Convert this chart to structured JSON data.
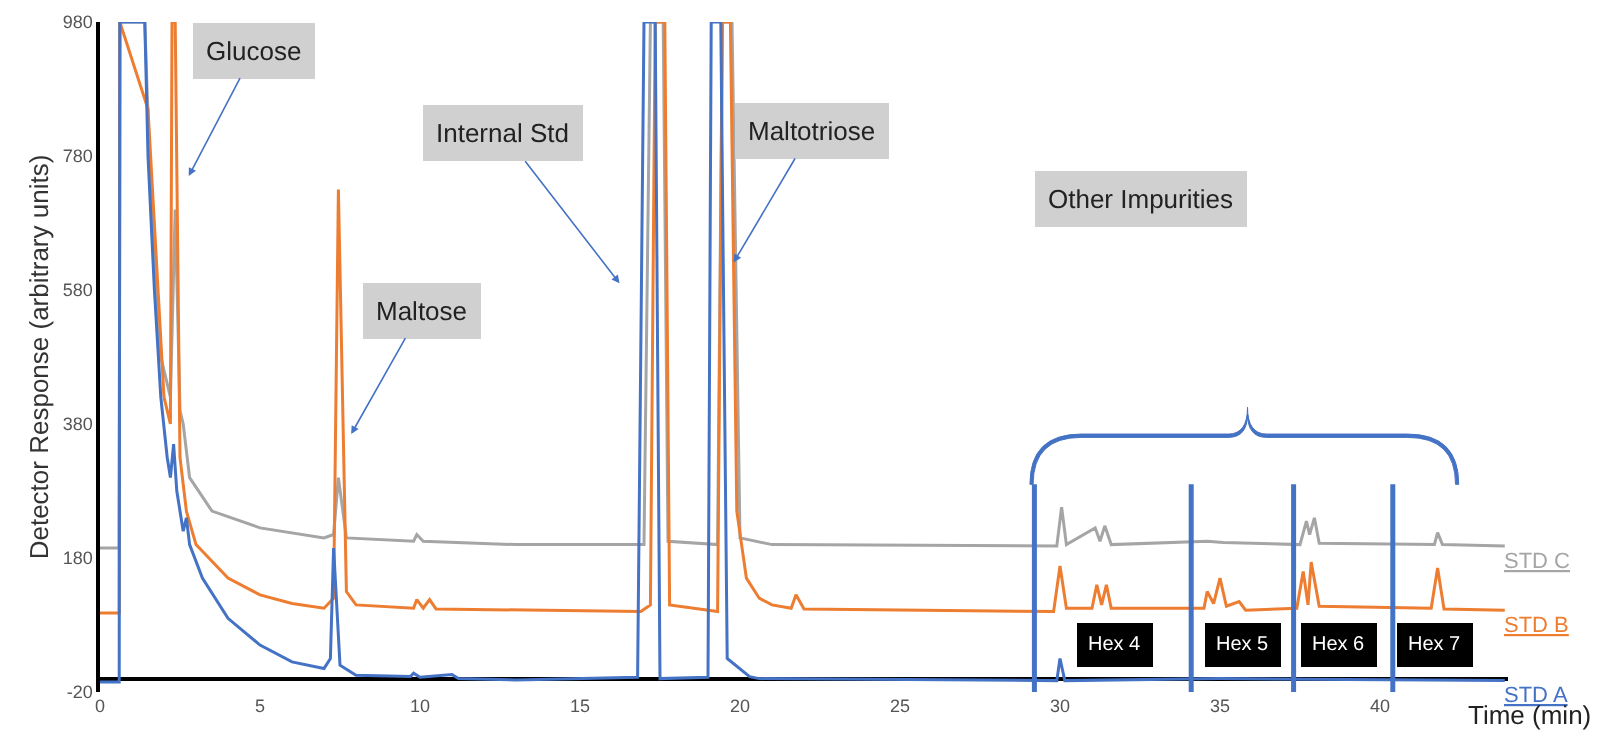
{
  "chart_data": {
    "type": "line",
    "xlabel": "Time (min)",
    "ylabel": "Detector Response (arbitrary units)",
    "xlim": [
      0,
      44
    ],
    "xticks": [
      0,
      5,
      10,
      15,
      20,
      25,
      30,
      35,
      40
    ],
    "ylim": [
      -20,
      980
    ],
    "yticks": [
      -20,
      180,
      380,
      580,
      780,
      980
    ],
    "grid": false,
    "legend": false,
    "marker": "none",
    "line_style": "solid",
    "series": [
      {
        "name": "STD C",
        "color": "#a5a5a5",
        "x": [
          0,
          0.55,
          0.6,
          0.62,
          1.4,
          1.6,
          1.9,
          2.2,
          2.35,
          2.5,
          2.6,
          2.8,
          3.5,
          5,
          7,
          7.3,
          7.45,
          7.7,
          9.8,
          9.9,
          10.1,
          13,
          17.0,
          17.2,
          17.6,
          17.75,
          19.3,
          19.45,
          19.75,
          20,
          21,
          29.9,
          30.05,
          30.2,
          31.1,
          31.25,
          31.4,
          31.6,
          34.6,
          35.1,
          37.5,
          37.7,
          37.8,
          37.95,
          38.1,
          41.7,
          41.8,
          41.95,
          43.9
        ],
        "values": [
          195,
          195,
          195,
          980,
          980,
          700,
          480,
          420,
          700,
          400,
          380,
          300,
          250,
          225,
          210,
          215,
          300,
          210,
          205,
          215,
          205,
          200,
          200,
          980,
          980,
          205,
          200,
          980,
          980,
          210,
          200,
          198,
          256,
          200,
          225,
          205,
          228,
          200,
          205,
          203,
          200,
          235,
          215,
          240,
          202,
          200,
          218,
          200,
          198
        ]
      },
      {
        "name": "STD B",
        "color": "#ed7d31",
        "x": [
          0,
          0.55,
          0.6,
          0.62,
          1.5,
          2.0,
          2.2,
          2.25,
          2.35,
          2.5,
          2.7,
          3,
          4,
          5,
          6,
          7,
          7.3,
          7.45,
          7.7,
          8,
          9.8,
          9.9,
          10.1,
          10.3,
          10.5,
          16.9,
          17.2,
          17.35,
          17.65,
          17.8,
          19.3,
          19.45,
          19.7,
          19.9,
          20.2,
          20.6,
          21,
          21.6,
          21.75,
          22,
          29.8,
          30.0,
          30.2,
          31,
          31.15,
          31.3,
          31.45,
          31.6,
          34.5,
          34.6,
          34.8,
          35.0,
          35.2,
          35.6,
          35.8,
          37.4,
          37.6,
          37.75,
          37.85,
          38.1,
          41.6,
          41.8,
          42.0,
          43.9
        ],
        "values": [
          98,
          98,
          98,
          980,
          850,
          420,
          380,
          980,
          980,
          330,
          250,
          200,
          150,
          125,
          112,
          105,
          120,
          730,
          130,
          110,
          105,
          118,
          105,
          118,
          104,
          100,
          110,
          980,
          980,
          110,
          100,
          980,
          980,
          250,
          150,
          120,
          110,
          105,
          125,
          104,
          100,
          168,
          105,
          105,
          140,
          110,
          140,
          105,
          105,
          130,
          112,
          150,
          108,
          115,
          102,
          105,
          160,
          110,
          174,
          108,
          105,
          165,
          104,
          102
        ]
      },
      {
        "name": "STD A",
        "color": "#4472c4",
        "x": [
          0,
          0.55,
          0.6,
          0.62,
          1.4,
          1.5,
          1.7,
          1.9,
          2.1,
          2.2,
          2.3,
          2.4,
          2.6,
          2.7,
          2.8,
          3.2,
          4,
          5,
          6,
          7,
          7.2,
          7.3,
          7.5,
          8,
          9.7,
          9.8,
          10,
          11,
          11.2,
          13,
          16.8,
          17.0,
          17.35,
          17.5,
          19.0,
          19.1,
          19.4,
          19.6,
          20.3,
          20.6,
          29.9,
          30.0,
          30.15,
          35,
          43.9
        ],
        "values": [
          -5,
          -5,
          -5,
          980,
          980,
          780,
          580,
          420,
          330,
          300,
          350,
          280,
          220,
          240,
          200,
          150,
          90,
          50,
          25,
          15,
          30,
          195,
          20,
          5,
          3,
          8,
          2,
          6,
          0,
          -2,
          2,
          980,
          980,
          0,
          2,
          980,
          980,
          30,
          3,
          0,
          -3,
          30,
          -3,
          0,
          -3
        ]
      }
    ],
    "ref_lines": [
      {
        "axis": "x",
        "value": 29.2,
        "color": "#4472c4"
      },
      {
        "axis": "x",
        "value": 34.1,
        "color": "#4472c4"
      },
      {
        "axis": "x",
        "value": 37.3,
        "color": "#4472c4"
      },
      {
        "axis": "x",
        "value": 40.4,
        "color": "#4472c4"
      }
    ],
    "annotations": [
      "Glucose",
      {
        "text": "Maltose",
        "x": 7.85,
        "y": 365
      },
      "Internal Std",
      {
        "text": "Maltotriose",
        "x": 19.8,
        "y": 621
      },
      "Other Impurities",
      {
        "text": "Hex 4",
        "x": 31.7,
        "y": 50
      },
      {
        "text": "Hex 5",
        "x": 35.7,
        "y": 50
      },
      {
        "text": "Hex 6",
        "x": 38.7,
        "y": 50
      },
      {
        "text": "Hex 7",
        "x": 41.7,
        "y": 50
      }
    ]
  }
}
